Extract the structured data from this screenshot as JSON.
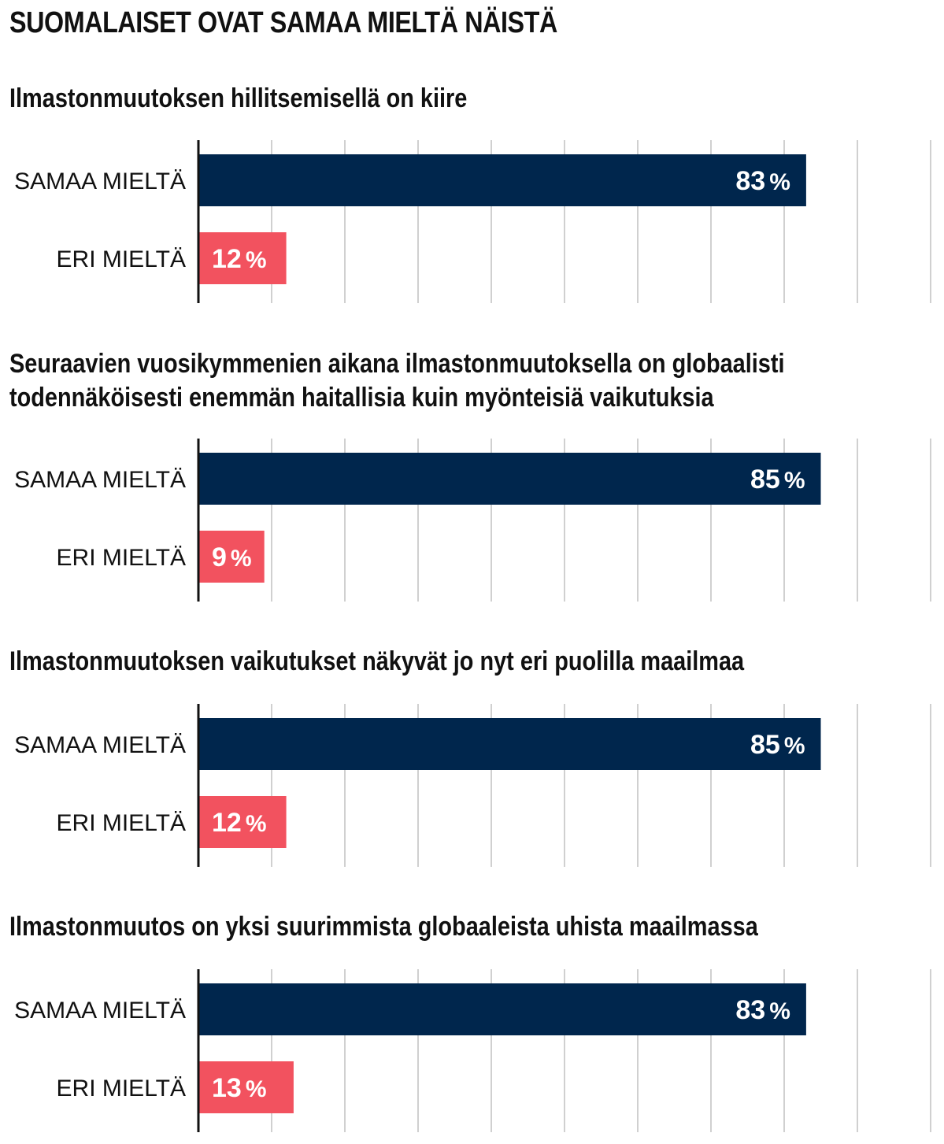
{
  "title": "SUOMALAISET OVAT SAMAA MIELTÄ NÄISTÄ",
  "colors": {
    "agree": "#00264d",
    "disagree": "#f2525f",
    "grid": "#d0d0d0",
    "axis": "#111111"
  },
  "chart_data": [
    {
      "type": "bar",
      "orientation": "horizontal",
      "title": "Ilmastonmuutoksen hillitsemisellä on kiire",
      "categories": [
        "SAMAA MIELTÄ",
        "ERI MIELTÄ"
      ],
      "values": [
        83,
        12
      ],
      "value_labels": [
        "83",
        "12"
      ],
      "unit": "%",
      "xlim": [
        0,
        100
      ],
      "grid": true
    },
    {
      "type": "bar",
      "orientation": "horizontal",
      "title": "Seuraavien vuosikymmenien aikana ilmastonmuutoksella on globaalisti todennäköisesti enemmän haitallisia kuin myönteisiä vaikutuksia",
      "title_lines": [
        "Seuraavien vuosikymmenien aikana ilmastonmuutoksella on globaalisti",
        "todennäköisesti enemmän haitallisia kuin myönteisiä vaikutuksia"
      ],
      "categories": [
        "SAMAA MIELTÄ",
        "ERI MIELTÄ"
      ],
      "values": [
        85,
        9
      ],
      "value_labels": [
        "85",
        "9"
      ],
      "unit": "%",
      "xlim": [
        0,
        100
      ],
      "grid": true
    },
    {
      "type": "bar",
      "orientation": "horizontal",
      "title": "Ilmastonmuutoksen vaikutukset näkyvät jo nyt eri puolilla maailmaa",
      "categories": [
        "SAMAA MIELTÄ",
        "ERI MIELTÄ"
      ],
      "values": [
        85,
        12
      ],
      "value_labels": [
        "85",
        "12"
      ],
      "unit": "%",
      "xlim": [
        0,
        100
      ],
      "grid": true
    },
    {
      "type": "bar",
      "orientation": "horizontal",
      "title": "Ilmastonmuutos on yksi suurimmista globaaleista uhista maailmassa",
      "categories": [
        "SAMAA MIELTÄ",
        "ERI MIELTÄ"
      ],
      "values": [
        83,
        13
      ],
      "value_labels": [
        "83",
        "13"
      ],
      "unit": "%",
      "xlim": [
        0,
        100
      ],
      "grid": true
    }
  ]
}
